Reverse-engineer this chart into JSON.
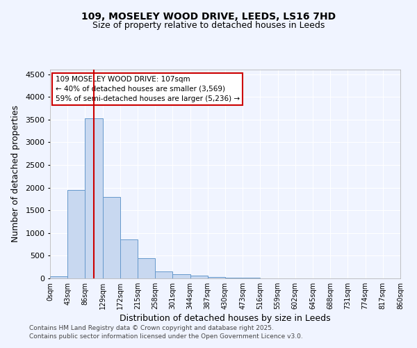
{
  "title_line1": "109, MOSELEY WOOD DRIVE, LEEDS, LS16 7HD",
  "title_line2": "Size of property relative to detached houses in Leeds",
  "xlabel": "Distribution of detached houses by size in Leeds",
  "ylabel": "Number of detached properties",
  "bar_color": "#c8d8f0",
  "bar_edge_color": "#6699cc",
  "background_color": "#f0f4ff",
  "plot_bg_color": "#f0f4ff",
  "grid_color": "#ffffff",
  "bin_edges": [
    0,
    43,
    86,
    129,
    172,
    215,
    258,
    301,
    344,
    387,
    430,
    473,
    516,
    559,
    602,
    645,
    688,
    731,
    774,
    817,
    860
  ],
  "bar_heights": [
    50,
    1950,
    3530,
    1800,
    860,
    450,
    160,
    95,
    55,
    35,
    20,
    8,
    2,
    1,
    1,
    0,
    0,
    0,
    0,
    0
  ],
  "property_size": 107,
  "vline_color": "#cc0000",
  "annotation_line1": "109 MOSELEY WOOD DRIVE: 107sqm",
  "annotation_line2": "← 40% of detached houses are smaller (3,569)",
  "annotation_line3": "59% of semi-detached houses are larger (5,236) →",
  "annotation_box_color": "#cc0000",
  "ylim": [
    0,
    4600
  ],
  "yticks": [
    0,
    500,
    1000,
    1500,
    2000,
    2500,
    3000,
    3500,
    4000,
    4500
  ],
  "footnote_line1": "Contains HM Land Registry data © Crown copyright and database right 2025.",
  "footnote_line2": "Contains public sector information licensed under the Open Government Licence v3.0."
}
